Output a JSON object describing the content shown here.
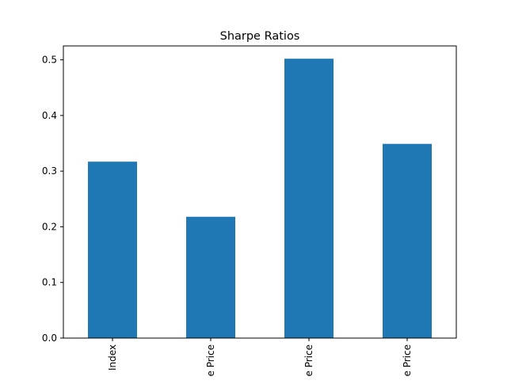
{
  "chart_data": {
    "type": "bar",
    "title": "Sharpe Ratios",
    "xlabel": "",
    "ylabel": "",
    "categories": [
      "Index",
      "e Price",
      "e Price",
      "e Price"
    ],
    "values": [
      0.317,
      0.218,
      0.502,
      0.349
    ],
    "ylim": [
      0,
      0.525
    ],
    "yticks": [
      0.0,
      0.1,
      0.2,
      0.3,
      0.4,
      0.5
    ],
    "ytick_labels": [
      "0.0",
      "0.1",
      "0.2",
      "0.3",
      "0.4",
      "0.5"
    ],
    "grid": false,
    "legend": "none",
    "bar_color": "#1f77b4"
  }
}
